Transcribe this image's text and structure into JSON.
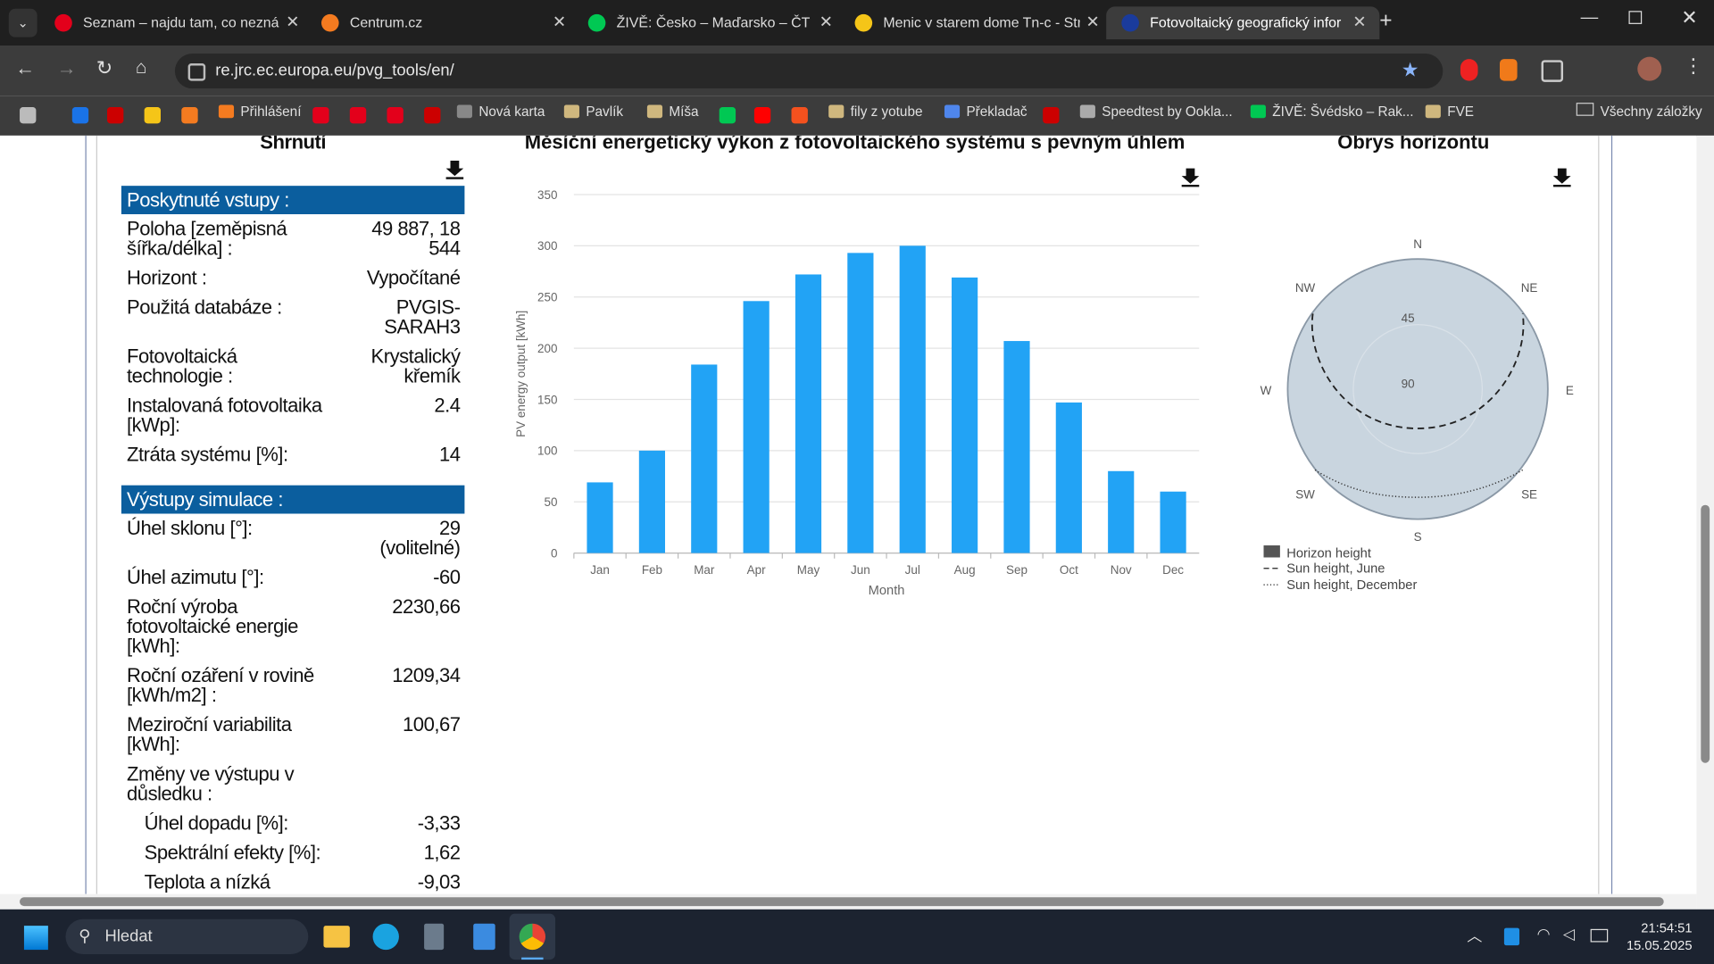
{
  "browser": {
    "tabs": [
      "Seznam – najdu tam, co neznán",
      "Centrum.cz",
      "ŽIVĚ: Česko – Maďarsko – ČT sp",
      "Menic v starem dome Tn-c - Str",
      "Fotovoltaický geografický infor"
    ],
    "url": "re.jrc.ec.europa.eu/pvg_tools/en/",
    "bookmarks": [
      "Přihlášení",
      "Nová karta",
      "Pavlík",
      "Míša",
      "fily z yotube",
      "Překladač",
      "Speedtest by Ookla...",
      "ŽIVĚ: Švédsko – Rak...",
      "FVE"
    ],
    "all_bookmarks": "Všechny záložky"
  },
  "summary": {
    "title": "Shrnutí",
    "inputs_header": "Poskytnuté vstupy :",
    "inputs": [
      {
        "label": "Poloha [zeměpisná šířka/délka] :",
        "value": "49 887, 18 544"
      },
      {
        "label": "Horizont :",
        "value": "Vypočítané"
      },
      {
        "label": "Použitá databáze :",
        "value": "PVGIS-SARAH3"
      },
      {
        "label": "Fotovoltaická technologie :",
        "value": "Krystalický křemík"
      },
      {
        "label": "Instalovaná fotovoltaika [kWp]:",
        "value": "2.4"
      },
      {
        "label": "Ztráta systému [%]:",
        "value": "14"
      }
    ],
    "outputs_header": "Výstupy simulace :",
    "outputs": [
      {
        "label": "Úhel sklonu [°]:",
        "value": "29 (volitelné)"
      },
      {
        "label": "Úhel azimutu [°]:",
        "value": "-60"
      },
      {
        "label": "Roční výroba fotovoltaické energie [kWh]:",
        "value": "2230,66"
      },
      {
        "label": "Roční ozáření v rovině [kWh/m2] :",
        "value": "1209,34"
      },
      {
        "label": "Meziroční variabilita [kWh]:",
        "value": "100,67"
      }
    ],
    "changes_header": "Změny ve výstupu v důsledku :",
    "changes": [
      {
        "label": "Úhel dopadu [%]:",
        "value": "-3,33"
      },
      {
        "label": "Spektrální efekty [%]:",
        "value": "1,62"
      },
      {
        "label": "Teplota a nízká",
        "value": "-9,03"
      }
    ]
  },
  "chart_data": {
    "type": "bar",
    "title": "Měsíční energetický výkon z fotovoltaického systému s pevným úhlem",
    "x_label": "Month",
    "y_label": "PV energy output [kWh]",
    "categories": [
      "Jan",
      "Feb",
      "Mar",
      "Apr",
      "May",
      "Jun",
      "Jul",
      "Aug",
      "Sep",
      "Oct",
      "Nov",
      "Dec"
    ],
    "values": [
      69,
      100,
      184,
      246,
      272,
      293,
      300,
      269,
      207,
      147,
      80,
      60
    ],
    "color": "#22a3f5",
    "ylim": [
      0,
      350
    ],
    "yticks": [
      0,
      50,
      100,
      150,
      200,
      250,
      300,
      350
    ],
    "grid": true
  },
  "horizon": {
    "title": "Obrys horizontu",
    "directions": [
      "N",
      "NE",
      "E",
      "SE",
      "S",
      "SW",
      "W",
      "NW"
    ],
    "rings": [
      "45",
      "90"
    ],
    "legend": [
      "Horizon height",
      "Sun height, June",
      "Sun height, December"
    ]
  },
  "taskbar": {
    "search": "Hledat",
    "time": "21:54:51",
    "date": "15.05.2025"
  }
}
